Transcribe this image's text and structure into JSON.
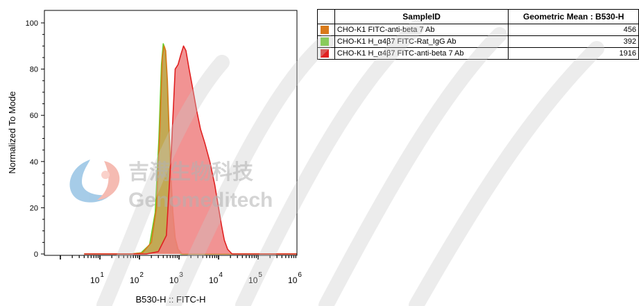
{
  "chart_data": {
    "type": "area",
    "title": "",
    "xlabel": "B530-H :: FITC-H",
    "ylabel": "Normalized To Mode",
    "x_scale": "log",
    "xlim": [
      3,
      2000000
    ],
    "ylim": [
      0,
      100
    ],
    "y_ticks": [
      "0",
      "20",
      "40",
      "60",
      "80",
      "100"
    ],
    "x_ticks": [
      {
        "base": "10",
        "exp": "1",
        "value": 10
      },
      {
        "base": "10",
        "exp": "2",
        "value": 100
      },
      {
        "base": "10",
        "exp": "3",
        "value": 1000
      },
      {
        "base": "10",
        "exp": "4",
        "value": 10000
      },
      {
        "base": "10",
        "exp": "5",
        "value": 100000
      },
      {
        "base": "10",
        "exp": "6",
        "value": 1000000
      }
    ],
    "series": [
      {
        "name": "CHO-K1 FITC-anti-beta 7 Ab",
        "color": "#d97a1a",
        "fill": "#c4a04a",
        "x": [
          4,
          60,
          120,
          200,
          270,
          330,
          380,
          420,
          460,
          510,
          560,
          620,
          700,
          800,
          950,
          1200,
          2000,
          1000000
        ],
        "y": [
          0,
          0,
          0.5,
          5,
          20,
          55,
          85,
          90,
          88,
          75,
          55,
          35,
          18,
          7,
          2,
          0,
          0,
          0
        ]
      },
      {
        "name": "CHO-K1 H_α4β7 FITC-Rat_IgG Ab",
        "color": "#66cc22",
        "fill": "#a8c060",
        "x": [
          4,
          60,
          110,
          180,
          250,
          310,
          360,
          400,
          440,
          490,
          540,
          600,
          680,
          780,
          900,
          1100,
          2000,
          1000000
        ],
        "y": [
          0,
          0,
          0.5,
          4,
          18,
          50,
          82,
          91,
          89,
          78,
          58,
          36,
          18,
          7,
          2,
          0,
          0,
          0
        ]
      },
      {
        "name": "CHO-K1 H_α4β7 FITC-anti-beta 7 Ab",
        "color": "#e02020",
        "fill": "#ee8080",
        "x": [
          4,
          150,
          300,
          480,
          640,
          800,
          950,
          1100,
          1300,
          1500,
          1800,
          2200,
          2800,
          3500,
          4500,
          6000,
          8000,
          10000,
          12000,
          14000,
          17000,
          22000,
          1000000
        ],
        "y": [
          0,
          0,
          1,
          8,
          45,
          80,
          82,
          86,
          90,
          88,
          80,
          72,
          62,
          54,
          48,
          40,
          30,
          20,
          12,
          6,
          2,
          0,
          0
        ]
      }
    ]
  },
  "legend_table": {
    "headers": {
      "sample": "SampleID",
      "gmean": "Geometric Mean : B530-H"
    },
    "rows": [
      {
        "sample": "CHO-K1 FITC-anti-beta 7 Ab",
        "value": "456",
        "color": "#d97a1a"
      },
      {
        "sample": "CHO-K1 H_α4β7 FITC-Rat_IgG Ab",
        "value": "392",
        "color": "#66cc22"
      },
      {
        "sample": "CHO-K1 H_α4β7 FITC-anti-beta 7 Ab",
        "value": "1916",
        "color": "#e02020"
      }
    ]
  },
  "watermark": {
    "chinese": "吉满生物科技",
    "english": "Genomeditech"
  }
}
